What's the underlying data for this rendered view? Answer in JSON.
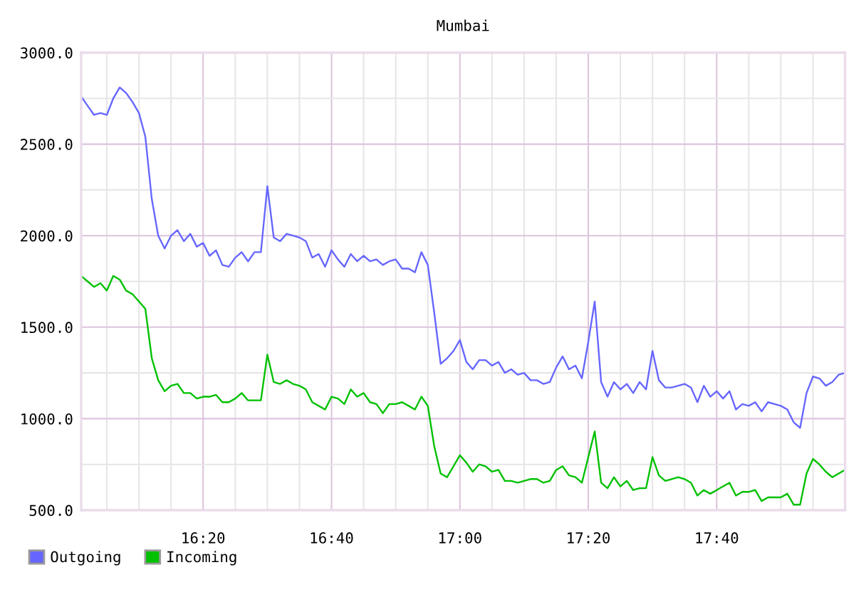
{
  "chart_data": {
    "type": "line",
    "title": "Mumbai",
    "x": [
      16.0167,
      16.0333,
      16.05,
      16.0667,
      16.0833,
      16.1,
      16.1167,
      16.1333,
      16.15,
      16.1667,
      16.1833,
      16.2,
      16.2167,
      16.2333,
      16.25,
      16.2667,
      16.2833,
      16.3,
      16.3167,
      16.3333,
      16.35,
      16.3667,
      16.3833,
      16.4,
      16.4167,
      16.4333,
      16.45,
      16.4667,
      16.4833,
      16.5,
      16.5167,
      16.5333,
      16.55,
      16.5667,
      16.5833,
      16.6,
      16.6167,
      16.6333,
      16.65,
      16.6667,
      16.6833,
      16.7,
      16.7167,
      16.7333,
      16.75,
      16.7667,
      16.7833,
      16.8,
      16.8167,
      16.8333,
      16.85,
      16.8667,
      16.8833,
      16.9,
      16.9167,
      16.9333,
      16.95,
      16.9667,
      16.9833,
      17.0,
      17.0167,
      17.0333,
      17.05,
      17.0667,
      17.0833,
      17.1,
      17.1167,
      17.1333,
      17.15,
      17.1667,
      17.1833,
      17.2,
      17.2167,
      17.2333,
      17.25,
      17.2667,
      17.2833,
      17.3,
      17.3167,
      17.3333,
      17.35,
      17.3667,
      17.3833,
      17.4,
      17.4167,
      17.4333,
      17.45,
      17.4667,
      17.4833,
      17.5,
      17.5167,
      17.5333,
      17.55,
      17.5667,
      17.5833,
      17.6,
      17.6167,
      17.6333,
      17.65,
      17.6667,
      17.6833,
      17.7,
      17.7167,
      17.7333,
      17.75,
      17.7667,
      17.7833,
      17.8,
      17.8167,
      17.8333,
      17.85,
      17.8667,
      17.8833,
      17.9,
      17.9167,
      17.9333,
      17.95,
      17.9667,
      17.9833,
      18.0
    ],
    "series": [
      {
        "name": "Outgoing",
        "color": "#6666ff",
        "values": [
          2760,
          2710,
          2660,
          2670,
          2660,
          2750,
          2810,
          2780,
          2730,
          2670,
          2540,
          2200,
          2000,
          1930,
          2000,
          2030,
          1970,
          2010,
          1940,
          1960,
          1890,
          1920,
          1840,
          1830,
          1880,
          1910,
          1860,
          1910,
          1910,
          2270,
          1990,
          1970,
          2010,
          2000,
          1990,
          1970,
          1880,
          1900,
          1830,
          1920,
          1870,
          1830,
          1900,
          1860,
          1890,
          1860,
          1870,
          1840,
          1860,
          1870,
          1820,
          1820,
          1800,
          1910,
          1840,
          1580,
          1300,
          1330,
          1370,
          1430,
          1310,
          1270,
          1320,
          1320,
          1290,
          1310,
          1250,
          1270,
          1240,
          1250,
          1210,
          1210,
          1190,
          1200,
          1280,
          1340,
          1270,
          1290,
          1220,
          1420,
          1640,
          1200,
          1120,
          1200,
          1160,
          1190,
          1140,
          1200,
          1160,
          1370,
          1210,
          1170,
          1170,
          1180,
          1190,
          1170,
          1090,
          1180,
          1120,
          1150,
          1110,
          1150,
          1050,
          1080,
          1070,
          1090,
          1040,
          1090,
          1080,
          1070,
          1050,
          980,
          950,
          1140,
          1230,
          1220,
          1180,
          1200,
          1240,
          1250
        ]
      },
      {
        "name": "Incoming",
        "color": "#00c000",
        "values": [
          1780,
          1750,
          1720,
          1740,
          1700,
          1780,
          1760,
          1700,
          1680,
          1640,
          1600,
          1330,
          1210,
          1150,
          1180,
          1190,
          1140,
          1140,
          1110,
          1120,
          1120,
          1130,
          1090,
          1090,
          1110,
          1140,
          1100,
          1100,
          1100,
          1350,
          1200,
          1190,
          1210,
          1190,
          1180,
          1160,
          1090,
          1070,
          1050,
          1120,
          1110,
          1080,
          1160,
          1120,
          1140,
          1090,
          1080,
          1030,
          1080,
          1080,
          1090,
          1070,
          1050,
          1120,
          1070,
          850,
          700,
          680,
          740,
          800,
          760,
          710,
          750,
          740,
          710,
          720,
          660,
          660,
          650,
          660,
          670,
          670,
          650,
          660,
          720,
          740,
          690,
          680,
          650,
          790,
          930,
          650,
          620,
          680,
          630,
          660,
          610,
          620,
          620,
          790,
          690,
          660,
          670,
          680,
          670,
          650,
          580,
          610,
          590,
          610,
          630,
          650,
          580,
          600,
          600,
          610,
          550,
          570,
          570,
          570,
          590,
          530,
          530,
          700,
          780,
          750,
          710,
          680,
          700,
          720
        ]
      }
    ],
    "xlim": [
      16.0167,
      18.0
    ],
    "xticks": [
      {
        "value": 16.0833,
        "label": null
      },
      {
        "value": 16.1667,
        "label": null
      },
      {
        "value": 16.25,
        "label": null
      },
      {
        "value": 16.3333,
        "label": "16:20"
      },
      {
        "value": 16.4167,
        "label": null
      },
      {
        "value": 16.5,
        "label": null
      },
      {
        "value": 16.5833,
        "label": null
      },
      {
        "value": 16.6667,
        "label": "16:40"
      },
      {
        "value": 16.75,
        "label": null
      },
      {
        "value": 16.8333,
        "label": null
      },
      {
        "value": 16.9167,
        "label": null
      },
      {
        "value": 17.0,
        "label": "17:00"
      },
      {
        "value": 17.0833,
        "label": null
      },
      {
        "value": 17.1667,
        "label": null
      },
      {
        "value": 17.25,
        "label": null
      },
      {
        "value": 17.3333,
        "label": "17:20"
      },
      {
        "value": 17.4167,
        "label": null
      },
      {
        "value": 17.5,
        "label": null
      },
      {
        "value": 17.5833,
        "label": null
      },
      {
        "value": 17.6667,
        "label": "17:40"
      },
      {
        "value": 17.75,
        "label": null
      },
      {
        "value": 17.8333,
        "label": null
      },
      {
        "value": 17.9167,
        "label": null
      }
    ],
    "ylim": [
      500,
      3000
    ],
    "yticks": [
      {
        "value": 500,
        "label": "500.0"
      },
      {
        "value": 750,
        "label": null
      },
      {
        "value": 1000,
        "label": "1000.0"
      },
      {
        "value": 1250,
        "label": null
      },
      {
        "value": 1500,
        "label": "1500.0"
      },
      {
        "value": 1750,
        "label": null
      },
      {
        "value": 2000,
        "label": "2000.0"
      },
      {
        "value": 2250,
        "label": null
      },
      {
        "value": 2500,
        "label": "2500.0"
      },
      {
        "value": 2750,
        "label": null
      },
      {
        "value": 3000,
        "label": "3000.0"
      }
    ],
    "grid": true,
    "legend": "bottom left",
    "marker": "none",
    "line_style": "solid"
  }
}
